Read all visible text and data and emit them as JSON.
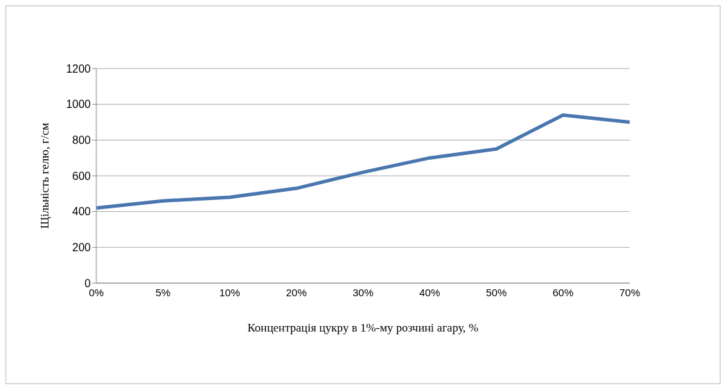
{
  "chart_data": {
    "type": "line",
    "xlabel": "Концентрація цукру в 1%-му розчині агару, %",
    "ylabel": "Щільність гелю, г/см",
    "categories": [
      "0%",
      "5%",
      "10%",
      "20%",
      "30%",
      "40%",
      "50%",
      "60%",
      "70%"
    ],
    "series": [
      {
        "color": "#4a76b0",
        "values": [
          420,
          460,
          480,
          530,
          620,
          700,
          750,
          940,
          900
        ]
      }
    ],
    "ylim": [
      0,
      1200
    ],
    "yticks": [
      0,
      200,
      400,
      600,
      800,
      1000,
      1200
    ],
    "grid": "y",
    "marker": "none",
    "line_style": "solid"
  }
}
